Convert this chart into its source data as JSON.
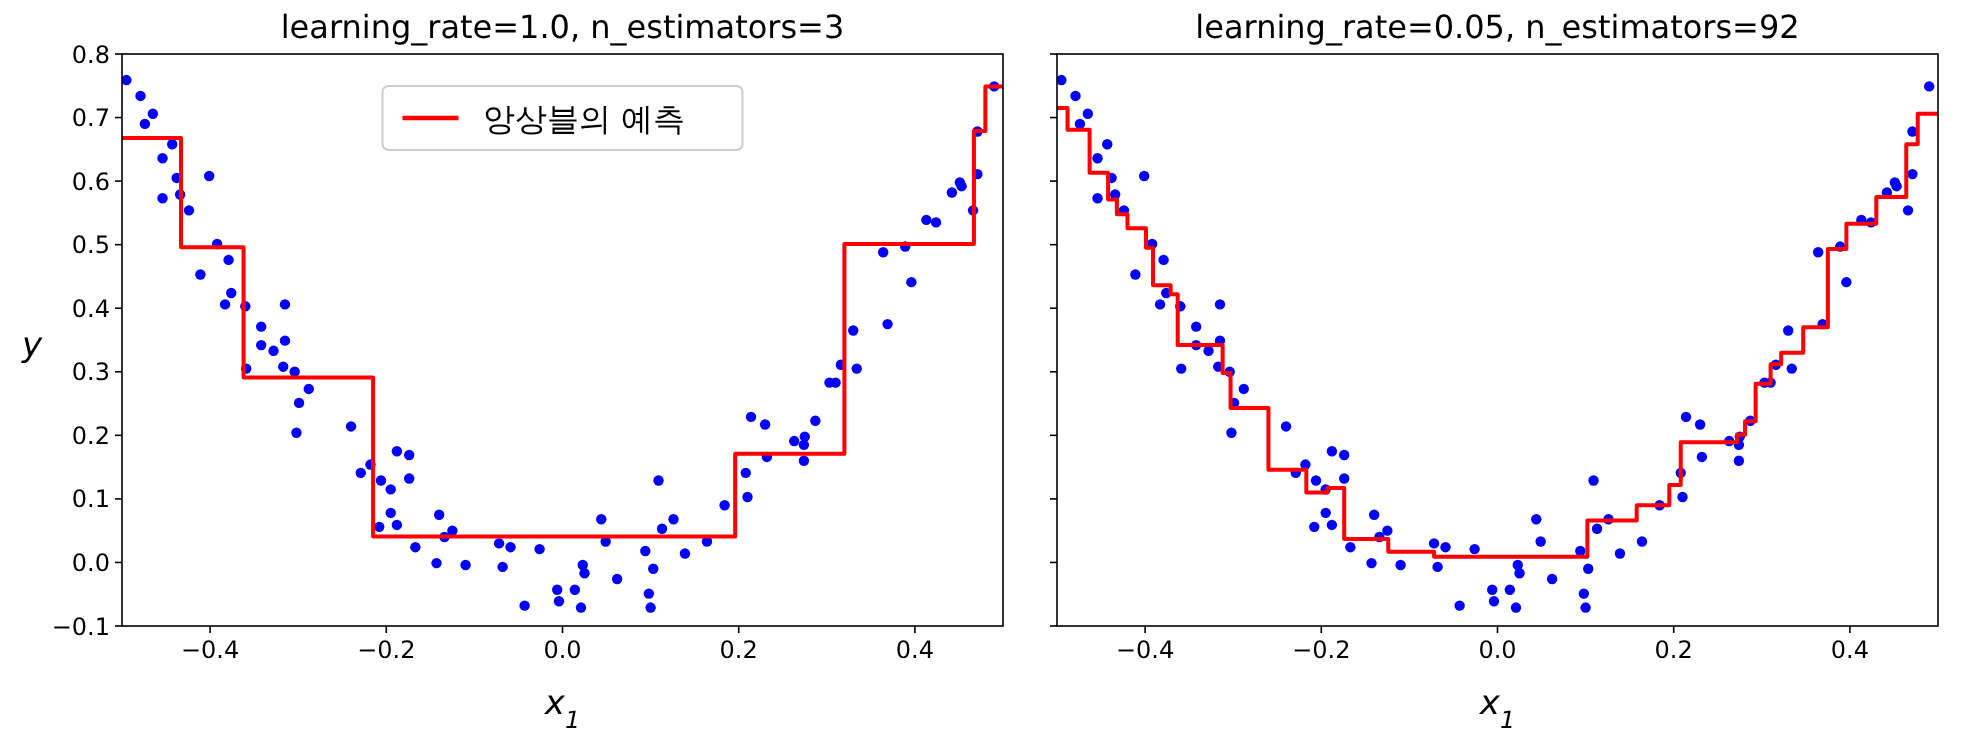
{
  "chart_data": [
    {
      "type": "scatter",
      "title": "learning_rate=1.0, n_estimators=3",
      "xlabel": "x$_{1}$",
      "ylabel": "y",
      "legend": "top center",
      "line_style": "solid",
      "xlim": [
        -0.5,
        0.5
      ],
      "ylim": [
        -0.1,
        0.8
      ],
      "xticks": [
        {
          "value": -0.4,
          "label": "−0.4"
        },
        {
          "value": -0.2,
          "label": "−0.2"
        },
        {
          "value": 0,
          "label": "0.0"
        },
        {
          "value": 0.2,
          "label": "0.2"
        },
        {
          "value": 0.4,
          "label": "0.4"
        }
      ],
      "yticks": [
        {
          "value": -0.1,
          "label": "−0.1"
        },
        {
          "value": 0,
          "label": "0.0"
        },
        {
          "value": 0.1,
          "label": "0.1"
        },
        {
          "value": 0.2,
          "label": "0.2"
        },
        {
          "value": 0.3,
          "label": "0.3"
        },
        {
          "value": 0.4,
          "label": "0.4"
        },
        {
          "value": 0.5,
          "label": "0.5"
        },
        {
          "value": 0.6,
          "label": "0.6"
        },
        {
          "value": 0.7,
          "label": "0.7"
        },
        {
          "value": 0.8,
          "label": "0.8"
        }
      ],
      "series": [
        {
          "marker": "circle",
          "color": "#0000ff",
          "x": [
            -0.495,
            -0.479,
            -0.474,
            -0.465,
            -0.454,
            -0.454,
            -0.443,
            -0.438,
            -0.434,
            -0.424,
            -0.401,
            -0.392,
            -0.411,
            -0.379,
            -0.376,
            -0.383,
            -0.36,
            -0.315,
            -0.342,
            -0.342,
            -0.328,
            -0.315,
            -0.317,
            -0.359,
            -0.304,
            -0.299,
            -0.288,
            -0.302,
            -0.24,
            -0.229,
            -0.218,
            -0.206,
            -0.195,
            -0.188,
            -0.174,
            -0.174,
            -0.195,
            -0.208,
            -0.188,
            -0.167,
            -0.14,
            -0.134,
            -0.125,
            -0.143,
            -0.11,
            -0.072,
            -0.059,
            -0.068,
            -0.026,
            -0.043,
            -0.006,
            -0.004,
            0.014,
            0.021,
            0.023,
            0.025,
            0.044,
            0.049,
            0.062,
            0.094,
            0.098,
            0.1,
            0.103,
            0.109,
            0.113,
            0.126,
            0.139,
            0.164,
            0.184,
            0.208,
            0.21,
            0.214,
            0.23,
            0.232,
            0.263,
            0.274,
            0.275,
            0.274,
            0.287,
            0.303,
            0.31,
            0.316,
            0.334,
            0.33,
            0.369,
            0.364,
            0.389,
            0.396,
            0.413,
            0.424,
            0.442,
            0.451,
            0.453,
            0.466,
            0.471,
            0.471,
            0.49
          ],
          "values": [
            0.759,
            0.734,
            0.69,
            0.706,
            0.636,
            0.573,
            0.658,
            0.605,
            0.579,
            0.554,
            0.608,
            0.501,
            0.453,
            0.476,
            0.424,
            0.406,
            0.403,
            0.406,
            0.371,
            0.342,
            0.333,
            0.349,
            0.308,
            0.305,
            0.3,
            0.251,
            0.273,
            0.204,
            0.214,
            0.141,
            0.154,
            0.129,
            0.115,
            0.175,
            0.169,
            0.132,
            0.078,
            0.056,
            0.059,
            0.024,
            0.075,
            0.04,
            0.05,
            -0.001,
            -0.004,
            0.03,
            0.024,
            -0.007,
            0.021,
            -0.068,
            -0.043,
            -0.061,
            -0.043,
            -0.071,
            -0.004,
            -0.017,
            0.068,
            0.033,
            -0.026,
            0.018,
            -0.049,
            -0.071,
            -0.01,
            0.129,
            0.053,
            0.068,
            0.014,
            0.033,
            0.09,
            0.141,
            0.103,
            0.229,
            0.217,
            0.166,
            0.191,
            0.185,
            0.198,
            0.16,
            0.223,
            0.283,
            0.283,
            0.311,
            0.305,
            0.365,
            0.375,
            0.488,
            0.497,
            0.441,
            0.539,
            0.535,
            0.582,
            0.598,
            0.592,
            0.554,
            0.611,
            0.678,
            0.749
          ]
        },
        {
          "type": "step",
          "name": "앙상블의 예측",
          "color": "#ff0000",
          "x": [
            -0.5,
            -0.433,
            -0.362,
            -0.215,
            0.196,
            0.32,
            0.467,
            0.48,
            0.5
          ],
          "values": [
            0.668,
            0.496,
            0.291,
            0.041,
            0.171,
            0.501,
            0.679,
            0.749,
            0.749
          ]
        }
      ]
    },
    {
      "type": "scatter",
      "title": "learning_rate=0.05, n_estimators=92",
      "xlabel": "x$_{1}$",
      "tick_labels": "x",
      "line_style": "solid",
      "xlim": [
        -0.5,
        0.5
      ],
      "ylim": [
        -0.1,
        0.8
      ],
      "xticks": [
        {
          "value": -0.4,
          "label": "−0.4"
        },
        {
          "value": -0.2,
          "label": "−0.2"
        },
        {
          "value": 0,
          "label": "0.0"
        },
        {
          "value": 0.2,
          "label": "0.2"
        },
        {
          "value": 0.4,
          "label": "0.4"
        }
      ],
      "yticks": [
        {
          "value": -0.1,
          "label": null
        },
        {
          "value": 0,
          "label": null
        },
        {
          "value": 0.1,
          "label": null
        },
        {
          "value": 0.2,
          "label": null
        },
        {
          "value": 0.3,
          "label": null
        },
        {
          "value": 0.4,
          "label": null
        },
        {
          "value": 0.5,
          "label": null
        },
        {
          "value": 0.6,
          "label": null
        },
        {
          "value": 0.7,
          "label": null
        },
        {
          "value": 0.8,
          "label": null
        }
      ],
      "series": [
        {
          "marker": "circle",
          "color": "#0000ff",
          "x": [
            -0.495,
            -0.479,
            -0.474,
            -0.465,
            -0.454,
            -0.454,
            -0.443,
            -0.438,
            -0.434,
            -0.424,
            -0.401,
            -0.392,
            -0.411,
            -0.379,
            -0.376,
            -0.383,
            -0.36,
            -0.315,
            -0.342,
            -0.342,
            -0.328,
            -0.315,
            -0.317,
            -0.359,
            -0.304,
            -0.299,
            -0.288,
            -0.302,
            -0.24,
            -0.229,
            -0.218,
            -0.206,
            -0.195,
            -0.188,
            -0.174,
            -0.174,
            -0.195,
            -0.208,
            -0.188,
            -0.167,
            -0.14,
            -0.134,
            -0.125,
            -0.143,
            -0.11,
            -0.072,
            -0.059,
            -0.068,
            -0.026,
            -0.043,
            -0.006,
            -0.004,
            0.014,
            0.021,
            0.023,
            0.025,
            0.044,
            0.049,
            0.062,
            0.094,
            0.098,
            0.1,
            0.103,
            0.109,
            0.113,
            0.126,
            0.139,
            0.164,
            0.184,
            0.208,
            0.21,
            0.214,
            0.23,
            0.232,
            0.263,
            0.274,
            0.275,
            0.274,
            0.287,
            0.303,
            0.31,
            0.316,
            0.334,
            0.33,
            0.369,
            0.364,
            0.389,
            0.396,
            0.413,
            0.424,
            0.442,
            0.451,
            0.453,
            0.466,
            0.471,
            0.471,
            0.49
          ],
          "values": [
            0.759,
            0.734,
            0.69,
            0.706,
            0.636,
            0.573,
            0.658,
            0.605,
            0.579,
            0.554,
            0.608,
            0.501,
            0.453,
            0.476,
            0.424,
            0.406,
            0.403,
            0.406,
            0.371,
            0.342,
            0.333,
            0.349,
            0.308,
            0.305,
            0.3,
            0.251,
            0.273,
            0.204,
            0.214,
            0.141,
            0.154,
            0.129,
            0.115,
            0.175,
            0.169,
            0.132,
            0.078,
            0.056,
            0.059,
            0.024,
            0.075,
            0.04,
            0.05,
            -0.001,
            -0.004,
            0.03,
            0.024,
            -0.007,
            0.021,
            -0.068,
            -0.043,
            -0.061,
            -0.043,
            -0.071,
            -0.004,
            -0.017,
            0.068,
            0.033,
            -0.026,
            0.018,
            -0.049,
            -0.071,
            -0.01,
            0.129,
            0.053,
            0.068,
            0.014,
            0.033,
            0.09,
            0.141,
            0.103,
            0.229,
            0.217,
            0.166,
            0.191,
            0.185,
            0.198,
            0.16,
            0.223,
            0.283,
            0.283,
            0.311,
            0.305,
            0.365,
            0.375,
            0.488,
            0.497,
            0.441,
            0.539,
            0.535,
            0.582,
            0.598,
            0.592,
            0.554,
            0.611,
            0.678,
            0.749
          ]
        },
        {
          "type": "step",
          "color": "#ff0000",
          "x": [
            -0.5,
            -0.488,
            -0.463,
            -0.442,
            -0.432,
            -0.42,
            -0.399,
            -0.391,
            -0.371,
            -0.363,
            -0.312,
            -0.303,
            -0.26,
            -0.217,
            -0.193,
            -0.174,
            -0.124,
            -0.072,
            0.102,
            0.158,
            0.195,
            0.208,
            0.272,
            0.281,
            0.293,
            0.31,
            0.322,
            0.347,
            0.375,
            0.396,
            0.43,
            0.464,
            0.477,
            0.5
          ],
          "values": [
            0.715,
            0.681,
            0.613,
            0.571,
            0.548,
            0.526,
            0.495,
            0.436,
            0.422,
            0.342,
            0.298,
            0.243,
            0.146,
            0.11,
            0.117,
            0.037,
            0.017,
            0.009,
            0.066,
            0.09,
            0.122,
            0.189,
            0.201,
            0.222,
            0.281,
            0.312,
            0.33,
            0.37,
            0.493,
            0.533,
            0.575,
            0.658,
            0.706,
            0.706
          ]
        }
      ]
    }
  ]
}
